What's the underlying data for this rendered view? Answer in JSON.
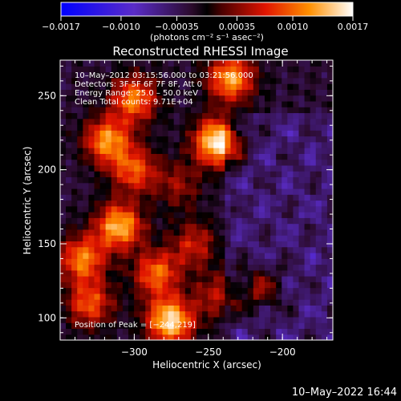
{
  "chart_data": {
    "type": "heatmap",
    "title": "Reconstructed RHESSI Image",
    "xlabel": "Heliocentric X (arcsec)",
    "ylabel": "Heliocentric Y (arcsec)",
    "xlim": [
      -350,
      -166
    ],
    "ylim": [
      85,
      274
    ],
    "xticks": [
      -300,
      -250,
      -200
    ],
    "xtick_labels": [
      "−300",
      "−250",
      "−200"
    ],
    "yticks": [
      100,
      150,
      200,
      250
    ],
    "ytick_labels": [
      "100",
      "150",
      "200",
      "250"
    ],
    "colorbar": {
      "range": [
        -0.0017,
        0.0017
      ],
      "ticks": [
        -0.0017,
        -0.001,
        -0.00035,
        0.00035,
        0.001,
        0.0017
      ],
      "tick_labels": [
        "−0.0017",
        "−0.0010",
        "−0.00035",
        "0.00035",
        "0.0010",
        "0.0017"
      ],
      "unit": "(photons cm⁻² s⁻¹ asec⁻²)"
    },
    "annotations": [
      "10–May–2012 03:15:56.000 to 03:21:56.000",
      "Detectors: 3F 5F 6F 7F 8F, Att 0",
      "Energy Range: 25.0 – 50.0 keV",
      "Clean     Total counts: 9.71E+04"
    ],
    "peak_label": "Position of Peak = [−244,219]",
    "peak": [
      -244,
      219
    ],
    "sources": [
      {
        "x": -244,
        "y": 219,
        "value": 0.0017
      },
      {
        "x": -235,
        "y": 262,
        "value": 0.0013
      },
      {
        "x": -276,
        "y": 98,
        "value": 0.0016
      },
      {
        "x": -310,
        "y": 162,
        "value": 0.0014
      },
      {
        "x": -318,
        "y": 220,
        "value": 0.0012
      },
      {
        "x": -300,
        "y": 248,
        "value": 0.0011
      },
      {
        "x": -335,
        "y": 140,
        "value": 0.0011
      },
      {
        "x": -285,
        "y": 130,
        "value": 0.001
      },
      {
        "x": -300,
        "y": 200,
        "value": 0.0009
      },
      {
        "x": -330,
        "y": 110,
        "value": 0.0009
      },
      {
        "x": -260,
        "y": 150,
        "value": 0.0006
      },
      {
        "x": -245,
        "y": 115,
        "value": 0.0005
      },
      {
        "x": -215,
        "y": 120,
        "value": 0.0005
      },
      {
        "x": -270,
        "y": 190,
        "value": 0.0004
      }
    ],
    "background": -0.0002
  },
  "footer": {
    "timestamp": "10–May–2022 16:44"
  }
}
